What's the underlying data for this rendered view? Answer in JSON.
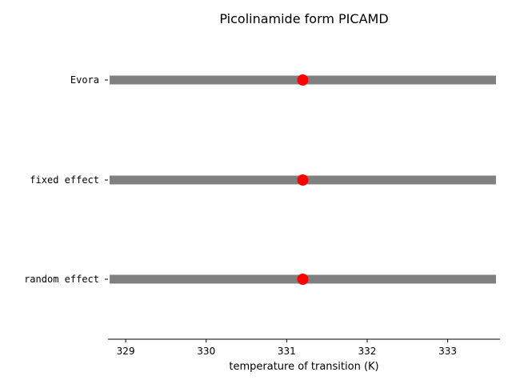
{
  "chart_data": {
    "type": "scatter",
    "title": "Picolinamide form PICAMD",
    "xlabel": "temperature of transition (K)",
    "ylabel": "",
    "xlim": [
      328.78,
      333.65
    ],
    "xticks": [
      329,
      330,
      331,
      332,
      333
    ],
    "grid": false,
    "categories": [
      "Evora",
      "fixed effect",
      "random effect"
    ],
    "points": [
      {
        "label": "Evora",
        "value": 331.2,
        "low": 328.8,
        "high": 333.6
      },
      {
        "label": "fixed effect",
        "value": 331.2,
        "low": 328.8,
        "high": 333.6
      },
      {
        "label": "random effect",
        "value": 331.2,
        "low": 328.8,
        "high": 333.6
      }
    ],
    "colors": {
      "interval": "#808080",
      "point": "#ff0000"
    }
  }
}
